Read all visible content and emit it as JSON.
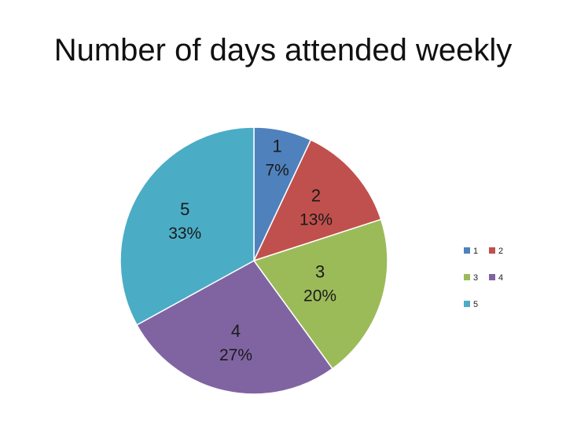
{
  "slide": {
    "title": "Number of days attended weekly"
  },
  "chart_data": {
    "type": "pie",
    "title": "Number of days attended weekly",
    "categories": [
      "1",
      "2",
      "3",
      "4",
      "5"
    ],
    "values": [
      7,
      13,
      20,
      27,
      33
    ],
    "data_labels": [
      "7%",
      "13%",
      "20%",
      "27%",
      "33%"
    ],
    "colors": [
      "#4F81BD",
      "#C0504D",
      "#9BBB59",
      "#8064A2",
      "#4BACC6"
    ],
    "legend_placement": "right",
    "start_angle_deg": 0,
    "direction": "clockwise"
  }
}
